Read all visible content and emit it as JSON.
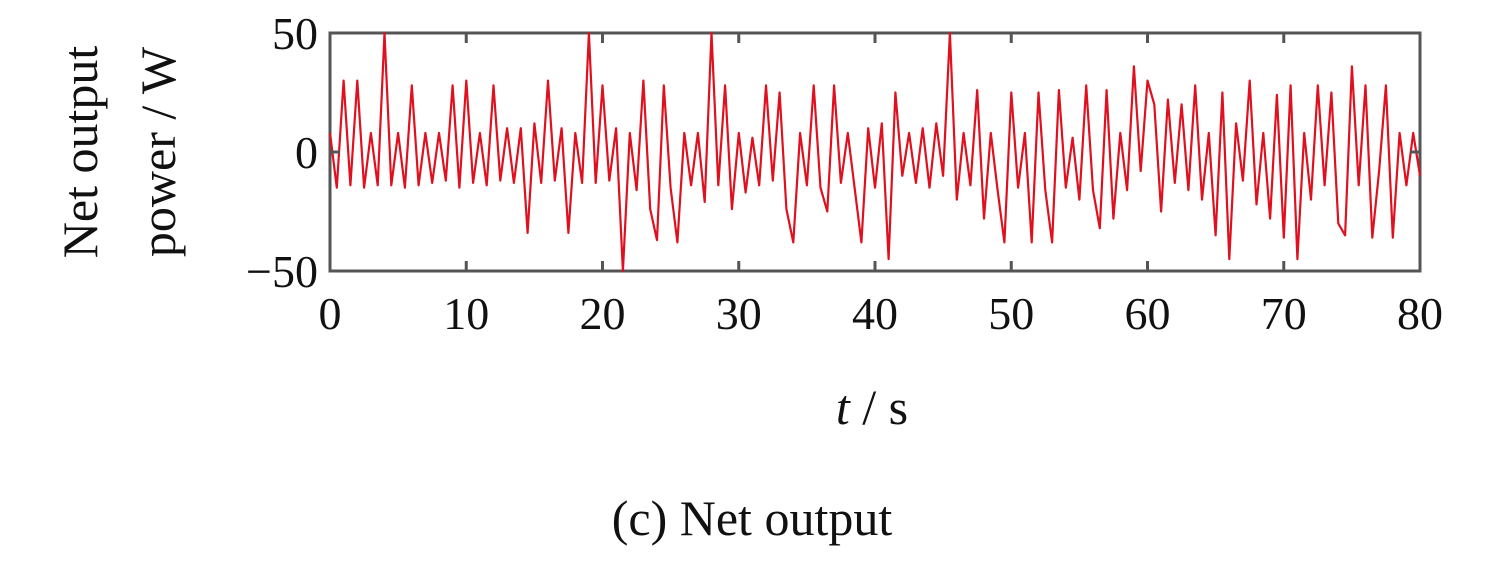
{
  "chart_data": {
    "type": "line",
    "caption": "(c) Net output",
    "ylabel_lines": [
      "Net output",
      "power / W"
    ],
    "xlabel_var": "t",
    "xlabel_unit": " / s",
    "xlim": [
      0,
      80
    ],
    "ylim": [
      -50,
      50
    ],
    "xticks": [
      0,
      10,
      20,
      30,
      40,
      50,
      60,
      70,
      80
    ],
    "yticks": [
      -50,
      0,
      50
    ],
    "ytick_labels": [
      "−50",
      "0",
      "50"
    ],
    "grid": false,
    "line_color": "#e0101e",
    "series": [
      {
        "x": [
          0,
          0.5,
          1,
          1.5,
          2,
          2.5,
          3,
          3.5,
          4,
          4.5,
          5,
          5.5,
          6,
          6.5,
          7,
          7.5,
          8,
          8.5,
          9,
          9.5,
          10,
          10.5,
          11,
          11.5,
          12,
          12.5,
          13,
          13.5,
          14,
          14.5,
          15,
          15.5,
          16,
          16.5,
          17,
          17.5,
          18,
          18.5,
          19,
          19.5,
          20,
          20.5,
          21,
          21.5,
          22,
          22.5,
          23,
          23.5,
          24,
          24.5,
          25,
          25.5,
          26,
          26.5,
          27,
          27.5,
          28,
          28.5,
          29,
          29.5,
          30,
          30.5,
          31,
          31.5,
          32,
          32.5,
          33,
          33.5,
          34,
          34.5,
          35,
          35.5,
          36,
          36.5,
          37,
          37.5,
          38,
          38.5,
          39,
          39.5,
          40,
          40.5,
          41,
          41.5,
          42,
          42.5,
          43,
          43.5,
          44,
          44.5,
          45,
          45.5,
          46,
          46.5,
          47,
          47.5,
          48,
          48.5,
          49,
          49.5,
          50,
          50.5,
          51,
          51.5,
          52,
          52.5,
          53,
          53.5,
          54,
          54.5,
          55,
          55.5,
          56,
          56.5,
          57,
          57.5,
          58,
          58.5,
          59,
          59.5,
          60,
          60.5,
          61,
          61.5,
          62,
          62.5,
          63,
          63.5,
          64,
          64.5,
          65,
          65.5,
          66,
          66.5,
          67,
          67.5,
          68,
          68.5,
          69,
          69.5,
          70,
          70.5,
          71,
          71.5,
          72,
          72.5,
          73,
          73.5,
          74,
          74.5,
          75,
          75.5,
          76,
          76.5,
          77,
          77.5,
          78,
          78.5,
          79,
          79.5,
          80
        ],
        "y": [
          8,
          -15,
          30,
          -14,
          30,
          -15,
          8,
          -14,
          50,
          -14,
          8,
          -15,
          28,
          -14,
          8,
          -13,
          8,
          -12,
          28,
          -15,
          30,
          -13,
          8,
          -14,
          28,
          -12,
          10,
          -13,
          10,
          -34,
          12,
          -13,
          30,
          -12,
          10,
          -34,
          8,
          -13,
          50,
          -13,
          28,
          -12,
          10,
          -50,
          8,
          -16,
          30,
          -24,
          -37,
          28,
          -15,
          -38,
          8,
          -14,
          8,
          -21,
          50,
          -14,
          28,
          -24,
          8,
          -17,
          6,
          -14,
          28,
          -12,
          25,
          -24,
          -38,
          8,
          -14,
          28,
          -15,
          -25,
          28,
          -13,
          8,
          -15,
          -38,
          10,
          -15,
          12,
          -45,
          25,
          -10,
          8,
          -13,
          10,
          -15,
          12,
          -10,
          50,
          -20,
          8,
          -14,
          26,
          -28,
          8,
          -16,
          -38,
          25,
          -15,
          8,
          -38,
          25,
          -16,
          -38,
          26,
          -15,
          6,
          -20,
          28,
          -16,
          -32,
          26,
          -28,
          8,
          -16,
          36,
          -8,
          30,
          20,
          -25,
          22,
          -13,
          20,
          -16,
          28,
          -20,
          8,
          -35,
          25,
          -45,
          12,
          -12,
          30,
          -22,
          8,
          -28,
          24,
          -36,
          28,
          -45,
          8,
          -20,
          28,
          -14,
          25,
          -30,
          -35,
          36,
          -14,
          28,
          -36,
          -8,
          28,
          -36,
          8,
          -14,
          8,
          -10
        ],
        "approximate": true
      }
    ]
  }
}
